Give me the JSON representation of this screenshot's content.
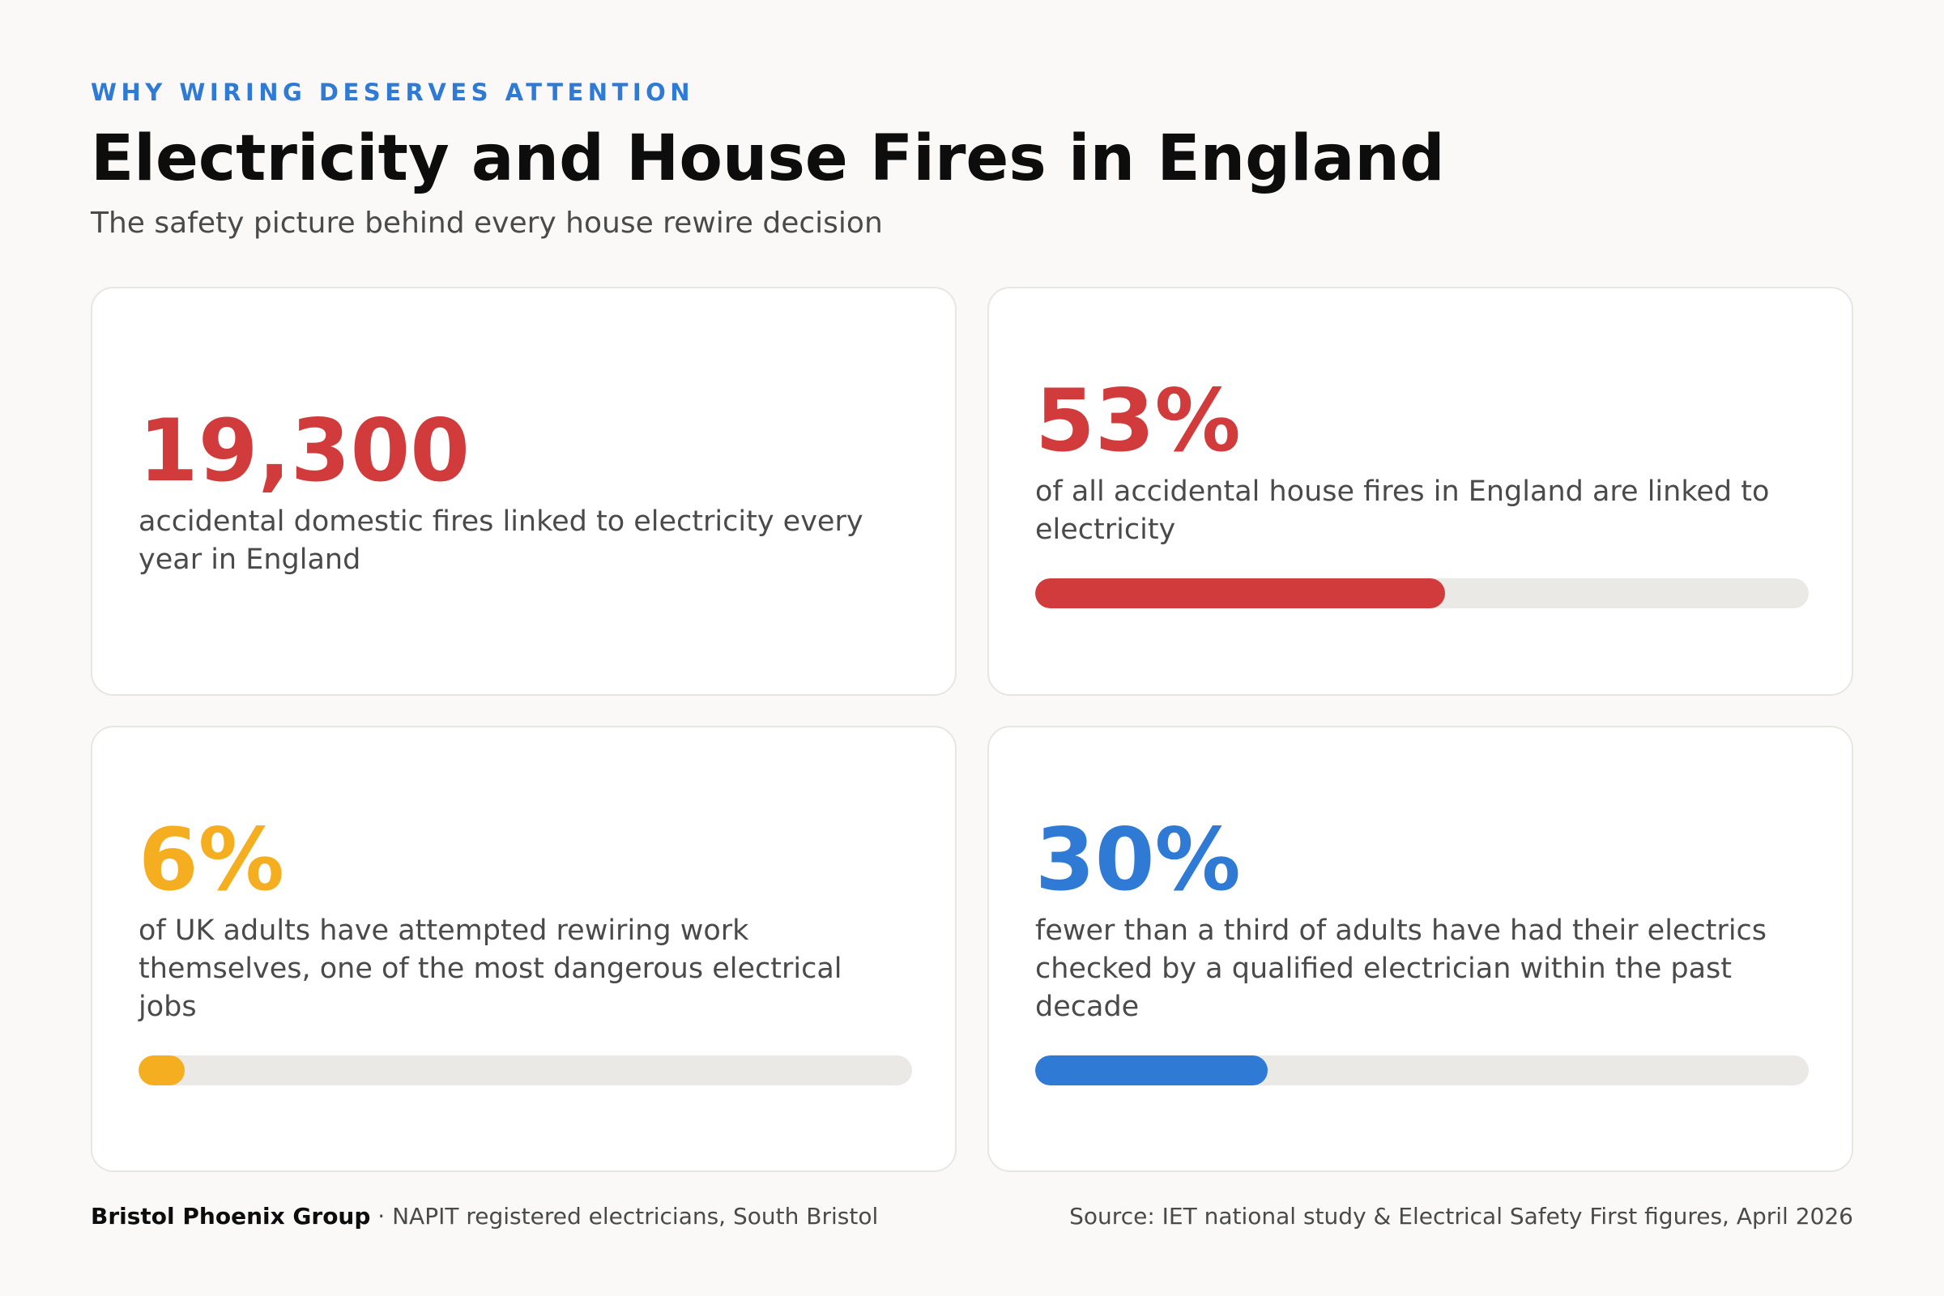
{
  "header": {
    "eyebrow": "WHY WIRING DESERVES ATTENTION",
    "title": "Electricity and House Fires in England",
    "subtitle": "The safety picture behind every house rewire decision"
  },
  "stats": [
    {
      "value": "19,300",
      "description": "accidental domestic fires linked to electricity every year in England",
      "color": "#d13b3b"
    },
    {
      "value": "53%",
      "description": "of all accidental house fires in England are linked to electricity",
      "color": "#d13b3b",
      "progress_percent": 53
    },
    {
      "value": "6%",
      "description": "of UK adults have attempted rewiring work themselves, one of the most dangerous electrical jobs",
      "color": "#f5ae1f",
      "progress_percent": 6
    },
    {
      "value": "30%",
      "description": "fewer than a third of adults have had their electrics checked by a qualified electrician within the past decade",
      "color": "#2e7ad4",
      "progress_percent": 30
    }
  ],
  "footer": {
    "brand": "Bristol Phoenix Group",
    "separator": " · ",
    "tagline": "NAPIT registered electricians, South Bristol",
    "source": "Source: IET national study & Electrical Safety First figures, April 2026"
  },
  "colors": {
    "accent_blue": "#2e7ad4",
    "accent_red": "#d13b3b",
    "accent_amber": "#f5ae1f",
    "track": "#ebe9e6",
    "background": "#faf9f7"
  }
}
